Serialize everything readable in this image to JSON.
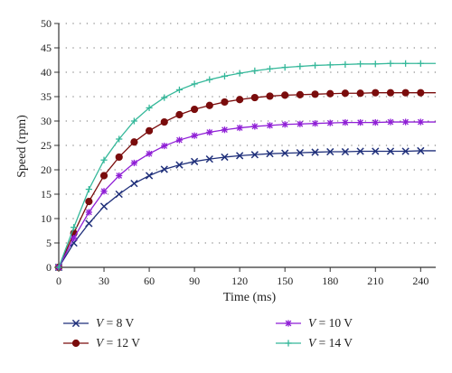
{
  "chart_data": {
    "type": "line",
    "title": "",
    "xlabel": "Time (ms)",
    "ylabel": "Speed (rpm)",
    "xlim": [
      0,
      250
    ],
    "ylim": [
      0,
      50
    ],
    "xticks": [
      0,
      30,
      60,
      90,
      120,
      150,
      180,
      210,
      240
    ],
    "yticks": [
      0,
      5,
      10,
      15,
      20,
      25,
      30,
      35,
      40,
      45,
      50
    ],
    "grid": "dotted horizontal",
    "legend": "bottom",
    "x": [
      0,
      10,
      20,
      30,
      40,
      50,
      60,
      70,
      80,
      90,
      100,
      110,
      120,
      130,
      140,
      150,
      160,
      170,
      180,
      190,
      200,
      210,
      220,
      230,
      240,
      250
    ],
    "series": [
      {
        "name": "V = 8 V",
        "var": "V",
        "value": "8 V",
        "color": "#1f2f7a",
        "marker": "x",
        "values": [
          0,
          5.0,
          9.0,
          12.5,
          15.0,
          17.2,
          18.8,
          20.1,
          21.0,
          21.7,
          22.2,
          22.6,
          22.9,
          23.1,
          23.3,
          23.4,
          23.5,
          23.6,
          23.7,
          23.7,
          23.8,
          23.8,
          23.8,
          23.8,
          23.9,
          23.9
        ]
      },
      {
        "name": "V = 12 V",
        "var": "V",
        "value": "12 V",
        "color": "#7a0c0c",
        "marker": "circle",
        "values": [
          0,
          7.0,
          13.5,
          18.8,
          22.6,
          25.7,
          28.0,
          29.8,
          31.3,
          32.4,
          33.2,
          33.9,
          34.4,
          34.8,
          35.1,
          35.3,
          35.4,
          35.5,
          35.6,
          35.7,
          35.7,
          35.8,
          35.8,
          35.8,
          35.8,
          35.8
        ]
      },
      {
        "name": "V = 10 V",
        "var": "V",
        "value": "10 V",
        "color": "#8f1fd6",
        "marker": "asterisk",
        "values": [
          0,
          6.0,
          11.3,
          15.6,
          18.8,
          21.4,
          23.3,
          24.9,
          26.1,
          27.0,
          27.7,
          28.2,
          28.6,
          28.9,
          29.1,
          29.3,
          29.4,
          29.5,
          29.6,
          29.7,
          29.7,
          29.7,
          29.8,
          29.8,
          29.8,
          29.8
        ]
      },
      {
        "name": "V = 14 V",
        "var": "V",
        "value": "14 V",
        "color": "#35b89a",
        "marker": "plus",
        "values": [
          0,
          8.2,
          16.0,
          22.0,
          26.3,
          30.0,
          32.7,
          34.8,
          36.4,
          37.6,
          38.5,
          39.2,
          39.8,
          40.3,
          40.7,
          41.0,
          41.2,
          41.4,
          41.5,
          41.6,
          41.7,
          41.7,
          41.8,
          41.8,
          41.8,
          41.8
        ]
      }
    ]
  }
}
